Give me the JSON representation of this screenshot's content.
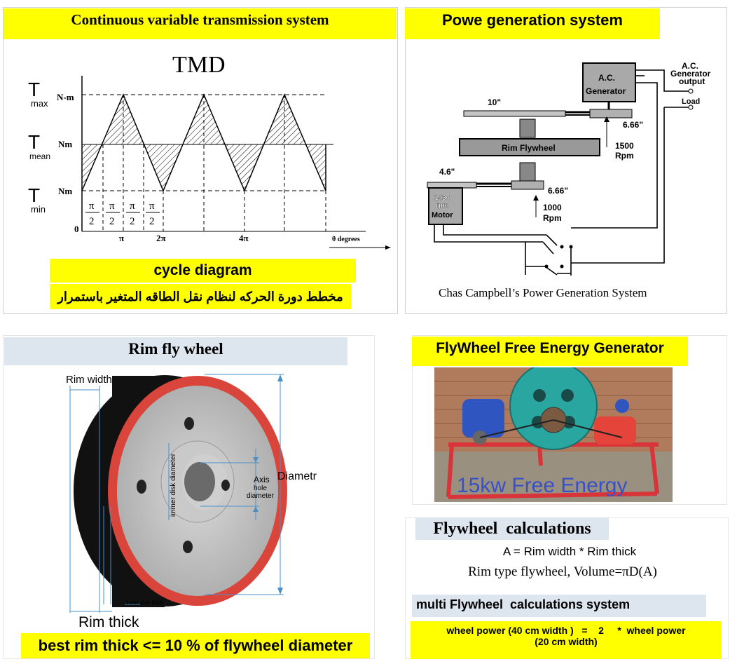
{
  "cvt": {
    "title": "Continuous variable transmission system",
    "tmd": "TMD",
    "t_letter": "T",
    "max_sub": "max",
    "mean_sub": "mean",
    "min_sub": "min",
    "unit_nm_m": "N-m",
    "unit_nm": "Nm",
    "zero": "0",
    "pi_over_2": "π/2",
    "pi_num": "π",
    "two": "2",
    "tick_pi": "π",
    "tick_2pi": "2π",
    "tick_4pi": "4π",
    "theta_label": "θ  degrees",
    "cycle_label": "cycle diagram",
    "arabic_caption": "مخطط دورة الحركه لنظام نقل الطاقه المتغير باستمرار"
  },
  "power": {
    "title": "Powe generation system",
    "ac_line1": "A.C.",
    "ac_line2": "Generator",
    "out_line1": "A.C.",
    "out_line2": "Generator",
    "out_line3": "output",
    "load": "Load",
    "size_10": "10\"",
    "size_666_top": "6.66\"",
    "rpm_1500": "1500",
    "rpm_label": "Rpm",
    "rim_flywheel": "Rim Flywheel",
    "size_46": "4.6\"",
    "motor_rpm_num": "1430",
    "motor_rpm_unit": "rpm",
    "motor": "Motor",
    "size_666_bottom": "6.66\"",
    "rpm_1000": "1000",
    "caption": "Chas Campbell’s Power Generation System"
  },
  "rim": {
    "title": "Rim fly wheel",
    "rim_width": "Rim width",
    "inner_disk_diameter": "immer disk diameter",
    "axis": "Axis",
    "hole": "hole",
    "hole_diameter": "diameter",
    "diametr": "Diametr",
    "inner_disk_thick": "inner disk thick",
    "rim_thick": "Rim thick",
    "best_rim": "best rim thick <= 10 % of flywheel diameter"
  },
  "flyfree": {
    "title": "FlyWheel Free Energy Generator",
    "overlay": "15kw Free Energy"
  },
  "calc": {
    "title": "Flywheel  calculations",
    "formula1": "A = Rim width * Rim thick",
    "formula2": "Rim type flywheel, Volume=πD(A)",
    "multi_title": "multi Flywheel  calculations system",
    "wheel_line1": "wheel power (40 cm width )   =    2     *  wheel power",
    "wheel_line2": "(20 cm width)"
  },
  "colors": {
    "yellow": "#ffff00",
    "rim_red": "#d9453a",
    "pulley_teal": "#2aa6a0",
    "steel": "#bdbdbd",
    "header_blue": "#dde5ef"
  }
}
